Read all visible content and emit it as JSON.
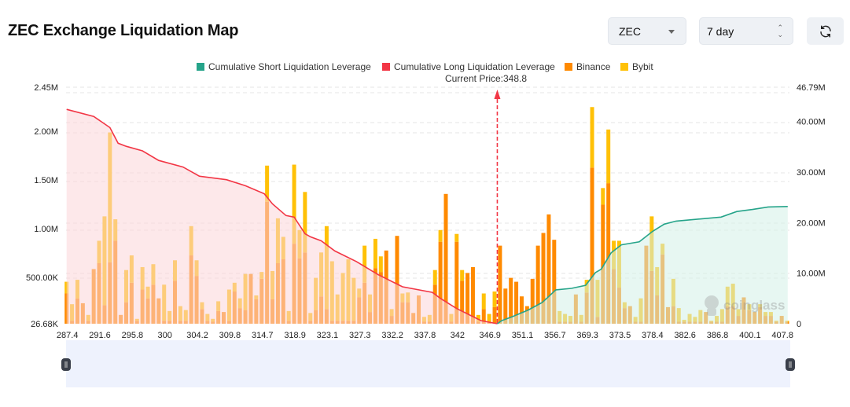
{
  "header": {
    "title": "ZEC Exchange Liquidation Map",
    "symbol_select": {
      "value": "ZEC",
      "icon": "caret-down-icon"
    },
    "period_select": {
      "value": "7 day",
      "icon": "spinner-arrows-icon"
    },
    "refresh_button": {
      "icon": "refresh-icon"
    }
  },
  "watermark": "coinglass",
  "chart_data": {
    "type": "bar",
    "legend": [
      {
        "name": "Cumulative Short Liquidation Leverage",
        "color": "#26a48a"
      },
      {
        "name": "Cumulative Long Liquidation Leverage",
        "color": "#f23645"
      },
      {
        "name": "Binance",
        "color": "#ff8a00"
      },
      {
        "name": "Bybit",
        "color": "#ffc107"
      }
    ],
    "legend_position": "top-center",
    "current_price_label": "Current Price:348.8",
    "current_price": 348.8,
    "x_tick_labels": [
      "287.4",
      "291.6",
      "295.8",
      "300",
      "304.2",
      "309.8",
      "314.7",
      "318.9",
      "323.1",
      "327.3",
      "332.2",
      "337.8",
      "342",
      "346.9",
      "351.1",
      "356.7",
      "369.3",
      "373.5",
      "378.4",
      "382.6",
      "386.8",
      "400.1",
      "407.8"
    ],
    "left_axis": {
      "ticks": [
        "26.68K",
        "500.00K",
        "1.00M",
        "1.50M",
        "2.00M",
        "2.45M"
      ],
      "values": [
        0.02668,
        0.5,
        1.0,
        1.5,
        2.0,
        2.45
      ],
      "range": [
        0.02668,
        2.45
      ],
      "unit": "M"
    },
    "right_axis": {
      "ticks": [
        "0",
        "10.00M",
        "20.00M",
        "30.00M",
        "40.00M",
        "46.79M"
      ],
      "values": [
        0,
        10,
        20,
        30,
        40,
        46.79
      ],
      "range": [
        0,
        46.79
      ],
      "unit": "M"
    },
    "grid": true,
    "series": [
      {
        "name": "Binance",
        "values": [
          0.31,
          0.03,
          0.26,
          0.21,
          0.03,
          0.56,
          0.62,
          0.19,
          0.63,
          0.85,
          0.09,
          0.22,
          0.42,
          0.03,
          0.35,
          0.26,
          0.4,
          0.26,
          0.03,
          0.03,
          0.44,
          0.03,
          0.03,
          0.7,
          0.49,
          0.15,
          0.03,
          0.02,
          0.13,
          0.12,
          0.03,
          0.33,
          0.16,
          0.14,
          0.51,
          0.25,
          0.46,
          1.25,
          0.25,
          0.62,
          0.66,
          0.03,
          0.82,
          0.67,
          0.73,
          0.03,
          0.14,
          0.28,
          0.15,
          0.03,
          0.03,
          0.03,
          0.03,
          0.03,
          0.27,
          0.42,
          0.12,
          0.57,
          0.53,
          0.75,
          0.08,
          0.9,
          0.22,
          0.22,
          0.11,
          0.29,
          0.02,
          0.02,
          0.4,
          0.84,
          1.33,
          0.02,
          0.84,
          0.44,
          0.52,
          0.58,
          0.02,
          0.15,
          0.02,
          0.17,
          0.8,
          0.36,
          0.47,
          0.43,
          0.28,
          0.18,
          0.46,
          0.8,
          0.93,
          1.12,
          0.86,
          0.02,
          0.02,
          0.02,
          0.3,
          0.02,
          0.32,
          1.6,
          0.07,
          1.22,
          1.44,
          0.56,
          0.37,
          0.16,
          0.18,
          0.02,
          0.02,
          0.8,
          0.54,
          0.29,
          0.71,
          0.17,
          0.18,
          0.02,
          0.02,
          0.02,
          0.02,
          0.02,
          0.12,
          0.02,
          0.02,
          0.02,
          0.18,
          0.18,
          0.08,
          0.27,
          0.14,
          0.12,
          0.17,
          0.08,
          0.08,
          0.02,
          0.08,
          0.02
        ]
      },
      {
        "name": "Bybit",
        "values": [
          0.12,
          0.17,
          0.19,
          0,
          0.06,
          0,
          0.23,
          0.91,
          1.33,
          0.22,
          0,
          0.33,
          0.28,
          0.02,
          0.23,
          0.12,
          0.21,
          0,
          0.37,
          0.1,
          0.21,
          0.15,
          0.11,
          0.3,
          0.16,
          0.07,
          0.07,
          0.03,
          0.1,
          0,
          0.32,
          0.09,
          0.1,
          0.37,
          0,
          0.04,
          0.07,
          0.37,
          0.29,
          0.46,
          0.23,
          0.1,
          0.81,
          0.29,
          0.62,
          0.08,
          0.33,
          0.45,
          0.85,
          0.61,
          0.27,
          0.49,
          0.63,
          0.44,
          0.09,
          0.38,
          0.18,
          0.3,
          0.16,
          0,
          0.07,
          0,
          0.09,
          0.1,
          0,
          0,
          0.05,
          0.07,
          0.15,
          0.12,
          0,
          0.08,
          0.08,
          0.11,
          0,
          0,
          0.07,
          0.16,
          0.08,
          0.16,
          0,
          0,
          0,
          0,
          0,
          0,
          0,
          0,
          0,
          0,
          0,
          0.11,
          0.08,
          0.06,
          0,
          0.07,
          0.13,
          0.62,
          0.38,
          0.17,
          0.55,
          0.29,
          0.48,
          0.06,
          0,
          0.05,
          0.24,
          0,
          0.56,
          0.29,
          0.11,
          0,
          0.28,
          0.14,
          0.02,
          0.08,
          0.05,
          0.12,
          0,
          0.01,
          0.06,
          0.13,
          0.2,
          0.23,
          0.07,
          0,
          0.06,
          0,
          0.03,
          0.04,
          0.04,
          0.01,
          0,
          0.01
        ]
      },
      {
        "name": "Cumulative Long Liquidation Leverage",
        "axis": "right",
        "points": [
          [
            0,
            42.4
          ],
          [
            5,
            41.0
          ],
          [
            8,
            38.8
          ],
          [
            9.5,
            35.7
          ],
          [
            11,
            35.1
          ],
          [
            14,
            34.2
          ],
          [
            17,
            32.3
          ],
          [
            21.5,
            31.0
          ],
          [
            24.5,
            29.2
          ],
          [
            29.5,
            28.5
          ],
          [
            33,
            27.3
          ],
          [
            36.5,
            25.7
          ],
          [
            38,
            23.7
          ],
          [
            40.5,
            21.4
          ],
          [
            42,
            21.1
          ],
          [
            44,
            17.8
          ],
          [
            45,
            17.2
          ],
          [
            47,
            16.4
          ],
          [
            49.5,
            14.4
          ],
          [
            53.5,
            12.3
          ],
          [
            57.5,
            9.7
          ],
          [
            62,
            7.3
          ],
          [
            67.5,
            6.2
          ],
          [
            69,
            5.0
          ],
          [
            72,
            3.0
          ],
          [
            76.5,
            0.6
          ],
          [
            79.5,
            0
          ]
        ]
      },
      {
        "name": "Cumulative Short Liquidation Leverage",
        "axis": "right",
        "points": [
          [
            79.5,
            0
          ],
          [
            80.3,
            0.6
          ],
          [
            82.3,
            1.4
          ],
          [
            85.2,
            2.7
          ],
          [
            87.8,
            4.2
          ],
          [
            90.3,
            6.7
          ],
          [
            93.2,
            7.0
          ],
          [
            95.8,
            7.6
          ],
          [
            97.6,
            10.1
          ],
          [
            98.7,
            10.8
          ],
          [
            100.5,
            14.0
          ],
          [
            102.4,
            15.6
          ],
          [
            105.7,
            16.2
          ],
          [
            108.2,
            18.3
          ],
          [
            110.3,
            19.7
          ],
          [
            112.5,
            20.3
          ],
          [
            120.8,
            21.1
          ],
          [
            123.7,
            22.2
          ],
          [
            126.6,
            22.6
          ],
          [
            129.5,
            23.1
          ],
          [
            133.1,
            23.2
          ]
        ]
      }
    ]
  }
}
